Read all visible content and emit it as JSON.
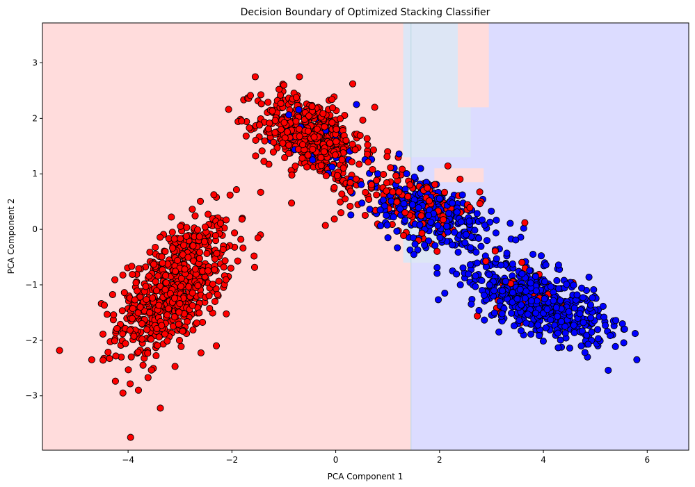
{
  "chart_data": {
    "type": "scatter",
    "title": "Decision Boundary of Optimized Stacking Classifier",
    "xlabel": "PCA Component 1",
    "ylabel": "PCA Component 2",
    "xlim": [
      -5.65,
      6.8
    ],
    "ylim": [
      -3.98,
      3.72
    ],
    "xticks": [
      -4,
      -2,
      0,
      2,
      4,
      6
    ],
    "yticks": [
      -3,
      -2,
      -1,
      0,
      1,
      2,
      3
    ],
    "xtick_labels": [
      "−4",
      "−2",
      "0",
      "2",
      "4",
      "6"
    ],
    "ytick_labels": [
      "−3",
      "−2",
      "−1",
      "0",
      "1",
      "2",
      "3"
    ],
    "grid": false,
    "legend": "none",
    "colors": {
      "region_class_0": "#ffdcdc",
      "region_class_1": "#dcdcff",
      "region_mixed": "#dde6f5",
      "class_0_point": "#ff0000",
      "class_1_point": "#0000ff",
      "point_edge": "#000000"
    },
    "decision_regions": {
      "boundary_x": 1.45,
      "left_class": 0,
      "right_class": 1,
      "mixed_patches": [
        {
          "x": [
            1.3,
            2.6
          ],
          "y": [
            1.3,
            3.72
          ]
        },
        {
          "x": [
            1.3,
            2.0
          ],
          "y": [
            -0.6,
            0.3
          ]
        }
      ],
      "red_patches": [
        {
          "x": [
            2.35,
            2.95
          ],
          "y": [
            2.2,
            3.72
          ]
        },
        {
          "x": [
            1.9,
            2.85
          ],
          "y": [
            0.85,
            1.1
          ]
        }
      ]
    },
    "series": [
      {
        "class": 0,
        "color": "#ff0000",
        "clusters": [
          {
            "center": [
              -3.1,
              -1.05
            ],
            "spread": [
              0.55,
              0.62
            ],
            "rho": 0.55,
            "n": 650
          },
          {
            "center": [
              -0.5,
              1.7
            ],
            "spread": [
              0.5,
              0.35
            ],
            "rho": -0.35,
            "n": 480
          },
          {
            "center": [
              1.4,
              0.55
            ],
            "spread": [
              0.7,
              0.35
            ],
            "rho": -0.5,
            "n": 170
          },
          {
            "center": [
              3.6,
              -1.1
            ],
            "spread": [
              0.5,
              0.3
            ],
            "rho": -0.4,
            "n": 30
          }
        ]
      },
      {
        "class": 1,
        "color": "#0000ff",
        "clusters": [
          {
            "center": [
              3.9,
              -1.3
            ],
            "spread": [
              0.65,
              0.35
            ],
            "rho": -0.55,
            "n": 520
          },
          {
            "center": [
              1.9,
              0.25
            ],
            "spread": [
              0.6,
              0.38
            ],
            "rho": -0.55,
            "n": 300
          },
          {
            "center": [
              -0.2,
              1.5
            ],
            "spread": [
              0.45,
              0.3
            ],
            "rho": -0.3,
            "n": 45
          }
        ]
      }
    ],
    "outliers": [
      {
        "class": 0,
        "x": -1.55,
        "y": 2.75
      },
      {
        "class": 0,
        "x": -1.8,
        "y": 0.2
      },
      {
        "class": 0,
        "x": -4.7,
        "y": -2.35
      },
      {
        "class": 0,
        "x": -4.1,
        "y": -2.95
      },
      {
        "class": 0,
        "x": -3.8,
        "y": -2.9
      },
      {
        "class": 0,
        "x": -2.3,
        "y": -2.1
      },
      {
        "class": 0,
        "x": -0.2,
        "y": 0.07
      },
      {
        "class": 0,
        "x": 0.1,
        "y": 0.3
      },
      {
        "class": 0,
        "x": 0.75,
        "y": 2.2
      },
      {
        "class": 0,
        "x": 1.0,
        "y": 1.4
      },
      {
        "class": 0,
        "x": 2.8,
        "y": 0.5
      },
      {
        "class": 0,
        "x": 3.1,
        "y": -1.42
      },
      {
        "class": 0,
        "x": -0.7,
        "y": 2.75
      },
      {
        "class": 0,
        "x": -1.0,
        "y": 2.6
      },
      {
        "class": 1,
        "x": 5.8,
        "y": -2.35
      },
      {
        "class": 1,
        "x": 5.55,
        "y": -1.8
      },
      {
        "class": 1,
        "x": 5.35,
        "y": -1.65
      },
      {
        "class": 1,
        "x": 2.1,
        "y": -1.15
      },
      {
        "class": 1,
        "x": 2.4,
        "y": -1.0
      },
      {
        "class": 1,
        "x": 3.8,
        "y": -0.45
      },
      {
        "class": 1,
        "x": 5.05,
        "y": -2.1
      },
      {
        "class": 1,
        "x": 4.8,
        "y": -2.22
      },
      {
        "class": 1,
        "x": 0.4,
        "y": 2.25
      },
      {
        "class": 1,
        "x": 2.25,
        "y": -0.75
      }
    ]
  }
}
